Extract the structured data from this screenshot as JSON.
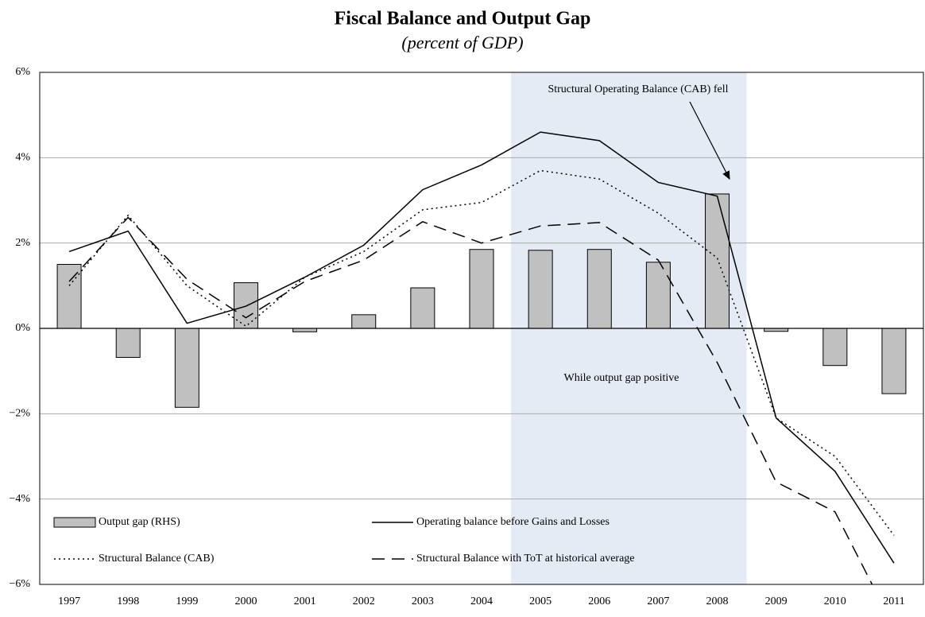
{
  "chart_data": {
    "type": "bar-line",
    "title": "Fiscal Balance and Output Gap",
    "subtitle": "(percent of GDP)",
    "categories": [
      "1997",
      "1998",
      "1999",
      "2000",
      "2001",
      "2002",
      "2003",
      "2004",
      "2005",
      "2006",
      "2007",
      "2008",
      "2009",
      "2010",
      "2011"
    ],
    "series": [
      {
        "name": "Output gap (RHS)",
        "type": "bar",
        "color": "#c0c0c0",
        "values": [
          1.5,
          -0.68,
          -1.85,
          1.07,
          -0.08,
          0.32,
          0.95,
          1.85,
          1.83,
          1.85,
          1.55,
          3.15,
          -0.07,
          -0.87,
          -1.53
        ]
      },
      {
        "name": "Operating balance before Gains and Losses",
        "type": "line",
        "style": "solid",
        "color": "#000000",
        "values": [
          1.8,
          2.28,
          0.12,
          0.52,
          1.2,
          1.95,
          3.25,
          3.83,
          4.6,
          4.4,
          3.42,
          3.1,
          -2.1,
          -3.35,
          -5.5
        ]
      },
      {
        "name": "Structural Balance (CAB)",
        "type": "line",
        "style": "dotted",
        "color": "#000000",
        "values": [
          1.0,
          2.65,
          1.0,
          0.05,
          1.2,
          1.8,
          2.78,
          2.95,
          3.7,
          3.5,
          2.7,
          1.65,
          -2.1,
          -3.0,
          -4.85
        ]
      },
      {
        "name": "Structural Balance with ToT at historical average",
        "type": "line",
        "style": "dashed",
        "color": "#000000",
        "values": [
          1.1,
          2.6,
          1.15,
          0.25,
          1.1,
          1.6,
          2.5,
          2.0,
          2.4,
          2.48,
          1.6,
          -0.8,
          -3.6,
          -4.3,
          -7.0
        ]
      }
    ],
    "ylim": [
      -6,
      6
    ],
    "yticks": [
      {
        "value": -6,
        "label": "−6%"
      },
      {
        "value": -4,
        "label": "−4%"
      },
      {
        "value": -2,
        "label": "−2%"
      },
      {
        "value": 0,
        "label": "0%"
      },
      {
        "value": 2,
        "label": "2%"
      },
      {
        "value": 4,
        "label": "4%"
      },
      {
        "value": 6,
        "label": "6%"
      }
    ],
    "grid": true,
    "highlight": {
      "from": "2005",
      "to": "2008",
      "color": "#dde6f2"
    },
    "annotations": [
      "Structural Operating Balance (CAB) fell",
      "While output gap positive"
    ]
  }
}
